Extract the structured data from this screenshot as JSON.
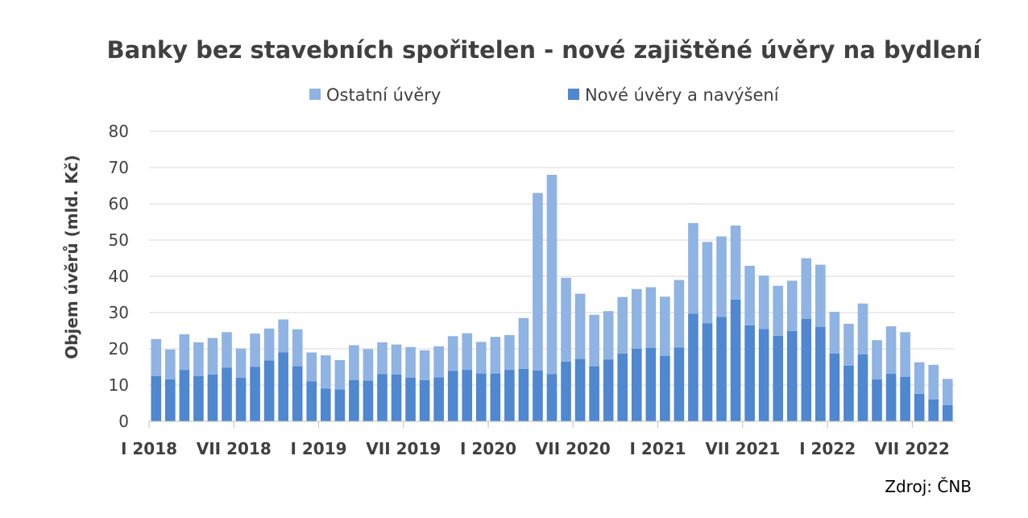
{
  "source_note": "Zdroj: ČNB",
  "colors": {
    "new": "#4f87d0",
    "other": "#8fb3e3",
    "grid": "#d9d9d9",
    "text": "#404040"
  },
  "chart_data": {
    "type": "bar",
    "stacked": true,
    "title": "Banky bez stavebních spořitelen - nové zajištěné úvěry na bydlení",
    "ylabel": "Objem úvěrů (mld. Kč)",
    "xlabel": "",
    "ylim": [
      0,
      80
    ],
    "yticks": [
      0,
      10,
      20,
      30,
      40,
      50,
      60,
      70,
      80
    ],
    "grid": true,
    "legend": "top",
    "legend_order": [
      1,
      0
    ],
    "x_tick_labels": [
      {
        "index": 0,
        "label": "I 2018"
      },
      {
        "index": 6,
        "label": "VII 2018"
      },
      {
        "index": 12,
        "label": "I 2019"
      },
      {
        "index": 18,
        "label": "VII 2019"
      },
      {
        "index": 24,
        "label": "I 2020"
      },
      {
        "index": 30,
        "label": "VII 2020"
      },
      {
        "index": 36,
        "label": "I 2021"
      },
      {
        "index": 42,
        "label": "VII 2021"
      },
      {
        "index": 48,
        "label": "I 2022"
      },
      {
        "index": 54,
        "label": "VII 2022"
      }
    ],
    "series": [
      {
        "name": "Nové úvěry a navýšení",
        "values": [
          12.5,
          11.6,
          14.2,
          12.5,
          12.9,
          14.8,
          12.0,
          15.0,
          16.8,
          19.0,
          15.2,
          11.0,
          9.0,
          8.8,
          11.4,
          11.2,
          13.0,
          12.9,
          12.0,
          11.4,
          12.1,
          13.9,
          14.2,
          13.2,
          13.2,
          14.2,
          14.5,
          14.0,
          13.0,
          16.5,
          17.2,
          15.2,
          17.0,
          18.7,
          20.0,
          20.3,
          18.0,
          20.4,
          29.7,
          27.0,
          28.8,
          33.6,
          26.5,
          25.5,
          23.6,
          24.9,
          28.3,
          26.0,
          18.7,
          15.4,
          18.5,
          11.6,
          13.1,
          12.3,
          7.6,
          6.0,
          4.5
        ]
      },
      {
        "name": "Ostatní úvěry",
        "values": [
          10.2,
          8.2,
          9.8,
          9.3,
          10.1,
          9.8,
          8.1,
          9.2,
          8.8,
          9.1,
          10.2,
          8.0,
          9.2,
          8.1,
          9.6,
          8.7,
          8.8,
          8.3,
          8.5,
          8.2,
          8.6,
          9.6,
          10.1,
          8.7,
          10.1,
          9.6,
          14.0,
          49.0,
          55.0,
          23.1,
          18.0,
          14.2,
          13.4,
          15.6,
          16.5,
          16.7,
          16.4,
          18.6,
          25.0,
          22.5,
          22.2,
          20.4,
          16.4,
          14.7,
          13.8,
          13.9,
          16.7,
          17.2,
          11.5,
          11.5,
          14.0,
          10.8,
          13.1,
          12.3,
          8.7,
          9.6,
          7.2
        ]
      }
    ]
  }
}
